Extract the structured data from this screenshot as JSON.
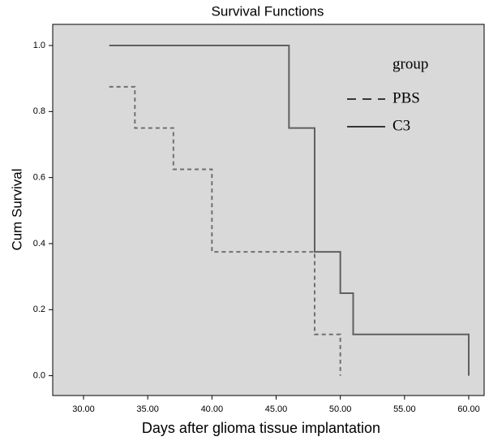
{
  "chart_data": {
    "type": "step",
    "title": "Survival Functions",
    "x_label": "Days after glioma tissue implantation",
    "y_label": "Cum Survival",
    "legend_title": "group",
    "legend": "upper right",
    "background": "#d9d9d9",
    "xlim": [
      27.6,
      61.2
    ],
    "ylim": [
      -0.06,
      1.064
    ],
    "xticks": [
      {
        "value": 30,
        "label": "30.00"
      },
      {
        "value": 35,
        "label": "35.00"
      },
      {
        "value": 40,
        "label": "40.00"
      },
      {
        "value": 45,
        "label": "45.00"
      },
      {
        "value": 50,
        "label": "50.00"
      },
      {
        "value": 55,
        "label": "55.00"
      },
      {
        "value": 60,
        "label": "60.00"
      }
    ],
    "yticks": [
      {
        "value": 0,
        "label": "0.0"
      },
      0.2,
      0.4,
      0.6,
      0.8,
      {
        "value": 1,
        "label": "1.0"
      }
    ],
    "series": [
      {
        "name": "PBS",
        "color": "#707070",
        "dashed": true,
        "x": [
          32,
          34,
          37,
          40,
          48,
          50
        ],
        "values": [
          0.875,
          0.75,
          0.625,
          0.375,
          0.125,
          0
        ]
      },
      {
        "name": "C3",
        "color": "#606060",
        "dashed": false,
        "x": [
          32,
          46,
          48,
          50,
          51,
          60
        ],
        "values": [
          1.0,
          0.75,
          0.375,
          0.25,
          0.125,
          0
        ]
      }
    ]
  }
}
